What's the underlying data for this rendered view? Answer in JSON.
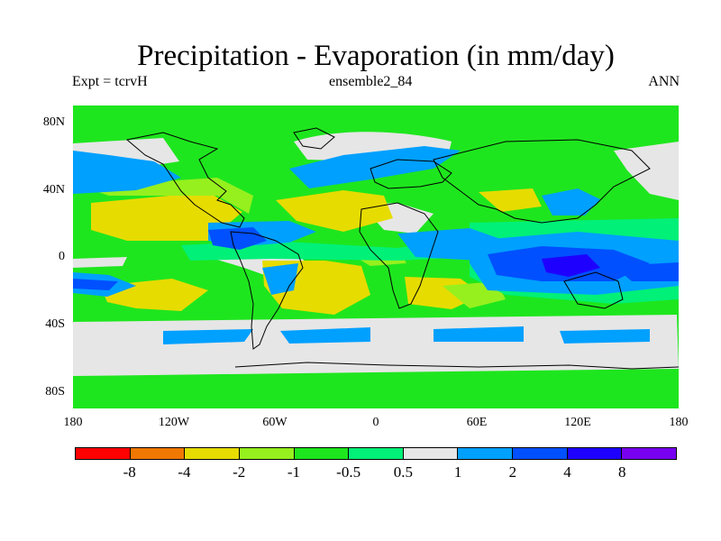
{
  "title": "Precipitation - Evaporation (in mm/day)",
  "subtitle": {
    "left": "Expt = tcrvH",
    "center": "ensemble2_84",
    "right": "ANN"
  },
  "map": {
    "lat_labels": [
      "80N",
      "40N",
      "0",
      "40S",
      "80S"
    ],
    "lon_labels": [
      "180",
      "120W",
      "60W",
      "0",
      "60E",
      "120E",
      "180"
    ]
  },
  "colorbar": {
    "colors": [
      "#ff0000",
      "#f07800",
      "#e6dc00",
      "#96f01e",
      "#1ee61e",
      "#00f078",
      "#e6e6e6",
      "#00a0ff",
      "#0050ff",
      "#1e00ff",
      "#7800f0"
    ],
    "labels": [
      "-8",
      "-4",
      "-2",
      "-1",
      "-0.5",
      "0.5",
      "1",
      "2",
      "4",
      "8"
    ]
  },
  "colors": {
    "green": "#1ee61e",
    "teal": "#00f078",
    "gray": "#e6e6e6",
    "yellow": "#e6dc00",
    "lightgreen": "#96f01e",
    "lightblue": "#00a0ff",
    "blue": "#0050ff",
    "darkblue": "#1e00ff"
  }
}
